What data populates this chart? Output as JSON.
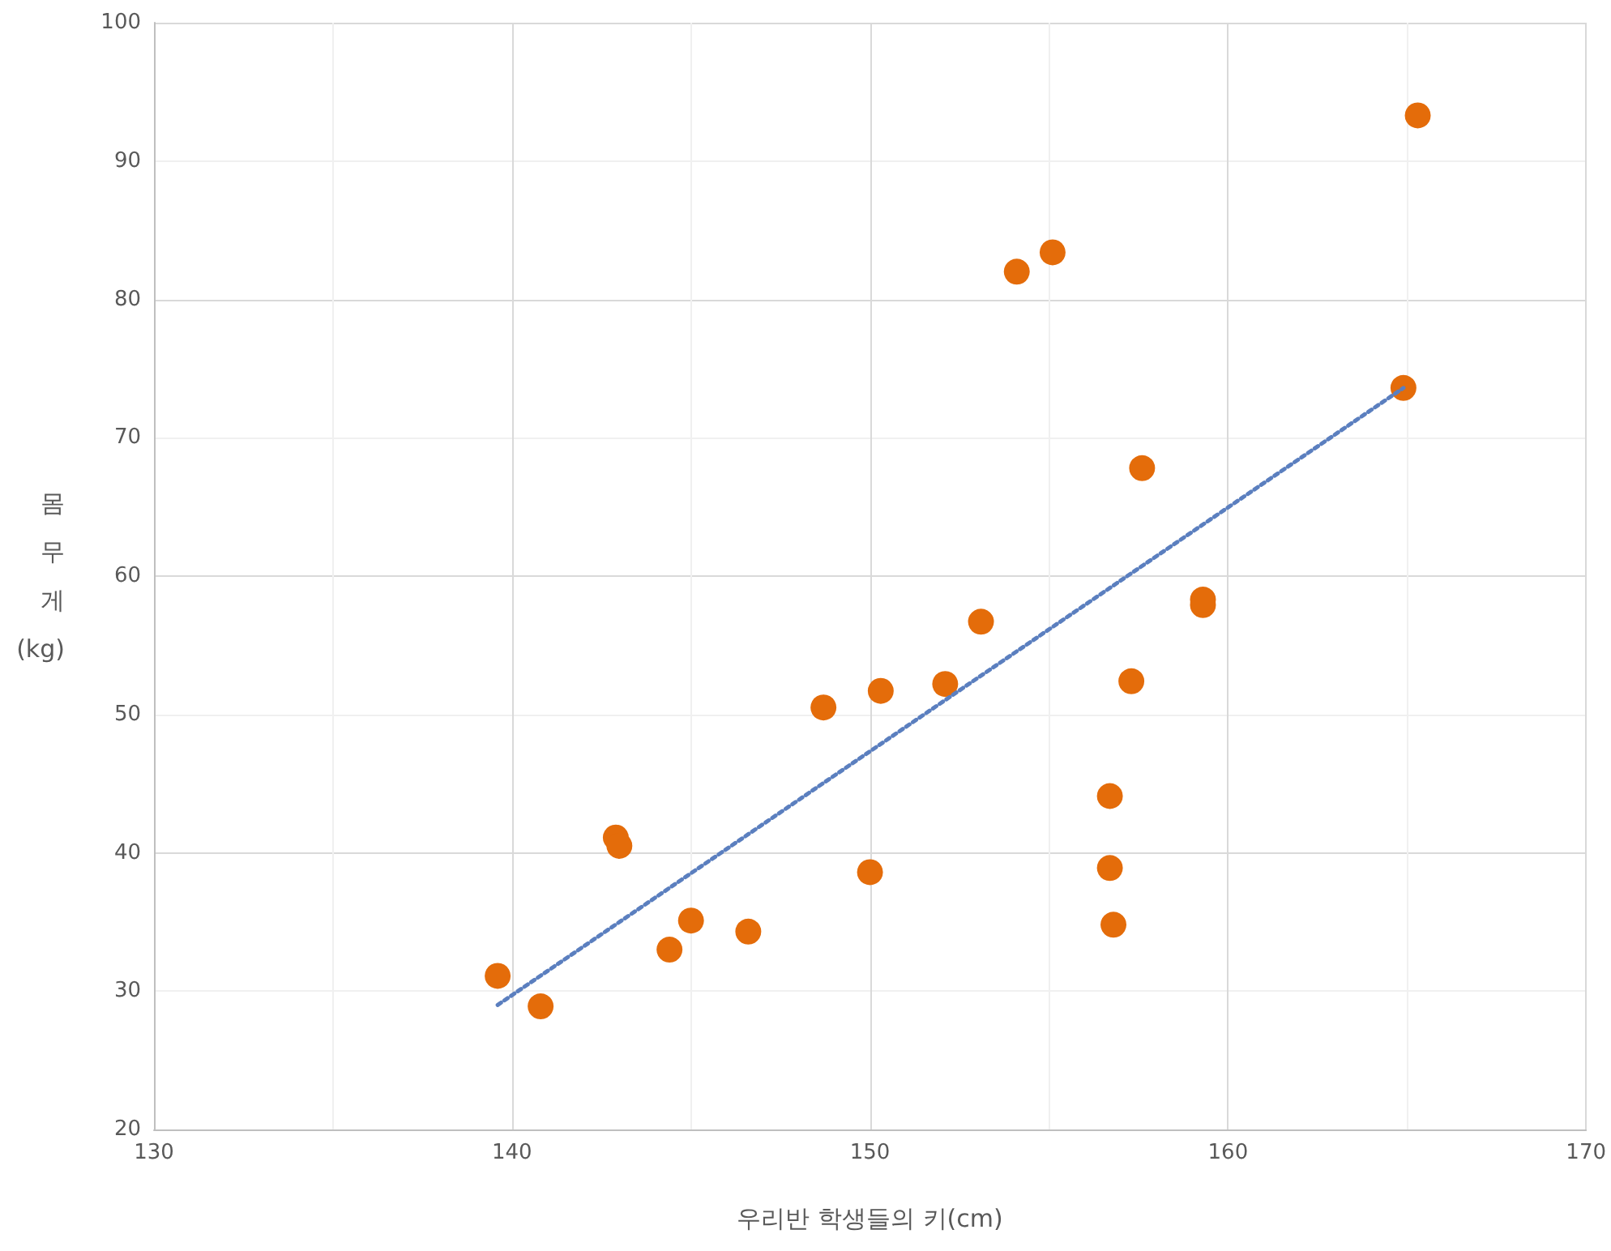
{
  "chart_data": {
    "type": "scatter",
    "xlabel": "우리반 학생들의 키(cm)",
    "ylabel": "몸\n무\n게\n(kg)",
    "xlim": [
      130,
      170
    ],
    "xticks": [
      130,
      140,
      150,
      160,
      170
    ],
    "ylim": [
      20,
      100
    ],
    "yticks": [
      20,
      30,
      40,
      50,
      60,
      70,
      80,
      90,
      100
    ],
    "grid": true,
    "marker": "circle",
    "series": [
      {
        "color": "#e46c0a",
        "x": [
          139.6,
          140.8,
          142.9,
          143.0,
          144.4,
          145.0,
          146.6,
          148.7,
          150.0,
          150.3,
          152.1,
          153.1,
          154.1,
          155.1,
          156.7,
          156.7,
          156.8,
          157.3,
          157.6,
          159.3,
          159.3,
          164.9,
          165.3
        ],
        "values": [
          31.1,
          28.9,
          41.1,
          40.5,
          33.0,
          35.1,
          34.3,
          50.5,
          38.6,
          51.7,
          52.2,
          56.7,
          82.0,
          83.4,
          44.1,
          38.9,
          34.8,
          52.4,
          67.8,
          57.9,
          58.3,
          73.6,
          93.3
        ]
      },
      {
        "type": "line",
        "color": "#5b7fbf",
        "line_style": "dotted",
        "marker": "none",
        "x": [
          139.6,
          164.9
        ],
        "values": [
          29.0,
          73.6
        ]
      }
    ]
  }
}
